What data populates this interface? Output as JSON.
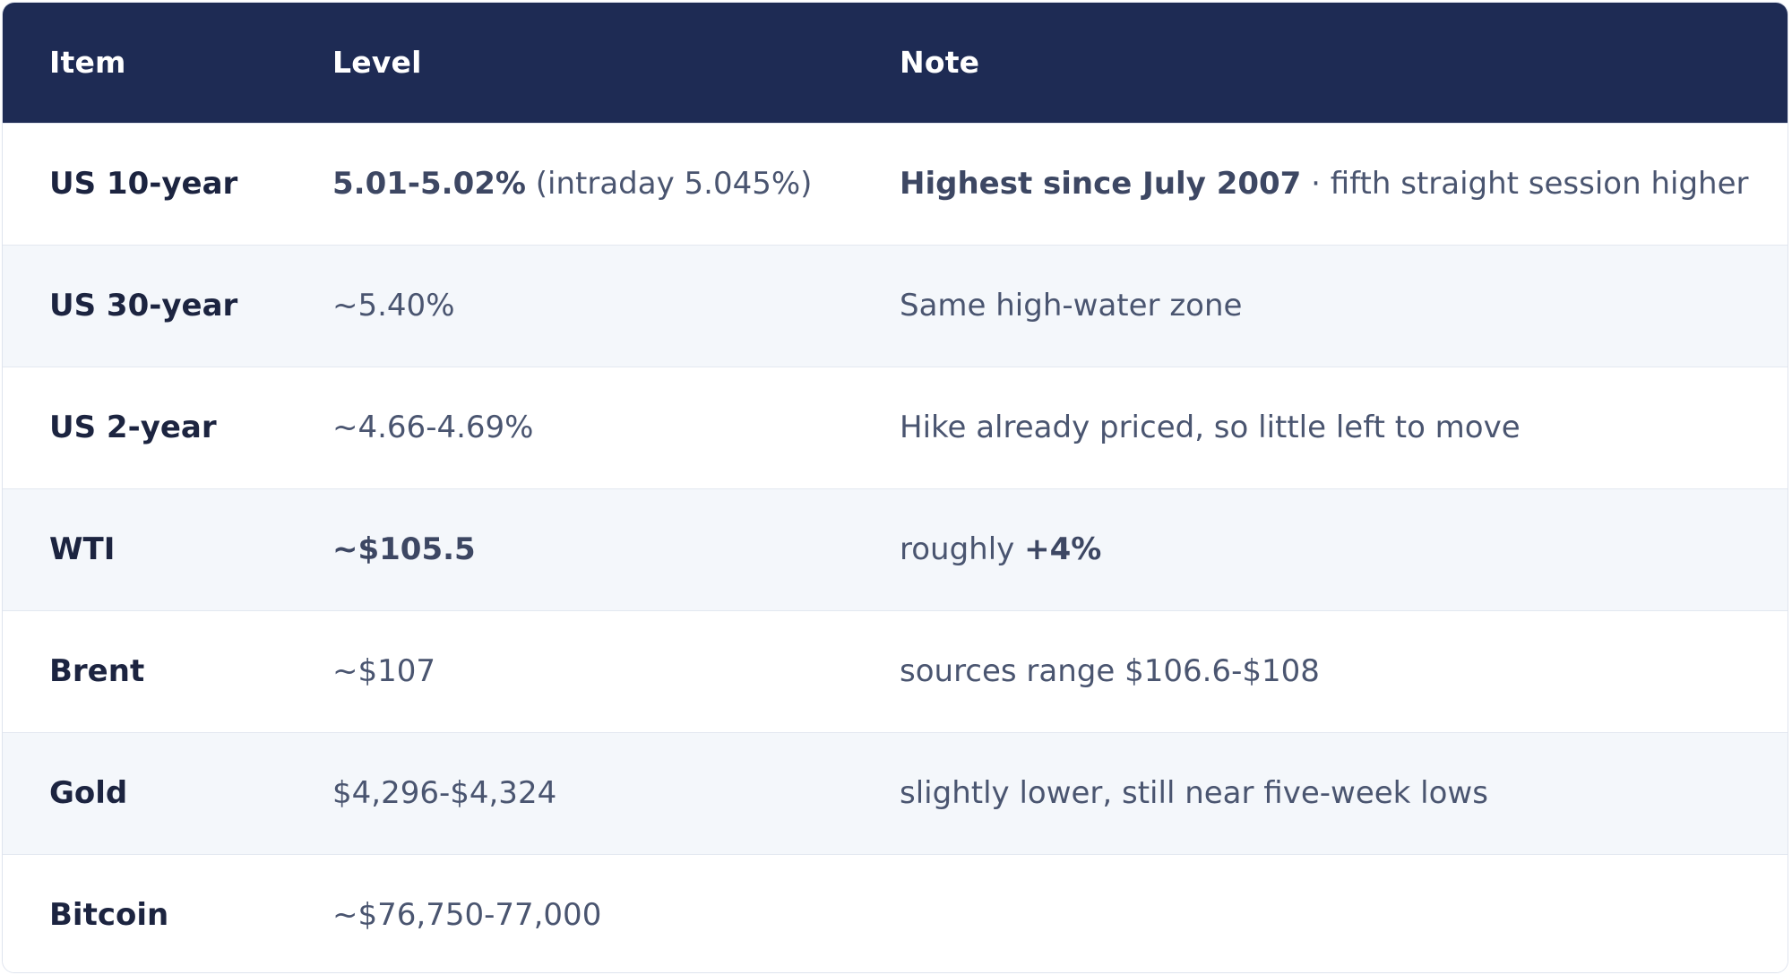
{
  "table": {
    "headers": {
      "item": "Item",
      "level": "Level",
      "note": "Note"
    },
    "rows": [
      {
        "item": "US 10-year",
        "level_strong": "5.01-5.02%",
        "level_rest": " (intraday 5.045%)",
        "note_strong": "Highest since July 2007",
        "note_rest": " · fifth straight session higher"
      },
      {
        "item": "US 30-year",
        "level_strong": "",
        "level_rest": "~5.40%",
        "note_pre": "Same high-water zone",
        "note_strong": ""
      },
      {
        "item": "US 2-year",
        "level_strong": "",
        "level_rest": "~4.66-4.69%",
        "note_pre": "Hike already priced, so little left to move",
        "note_strong": ""
      },
      {
        "item": "WTI",
        "level_strong": "~$105.5",
        "level_rest": "",
        "note_pre": "roughly ",
        "note_strong": "+4%"
      },
      {
        "item": "Brent",
        "level_strong": "",
        "level_rest": "~$107",
        "note_pre": "sources range $106.6-$108",
        "note_strong": ""
      },
      {
        "item": "Gold",
        "level_strong": "",
        "level_rest": "$4,296-$4,324",
        "note_pre": "slightly lower, still near five-week lows",
        "note_strong": ""
      },
      {
        "item": "Bitcoin",
        "level_strong": "",
        "level_rest": "~$76,750-77,000",
        "note_pre": "",
        "note_strong": ""
      }
    ]
  }
}
